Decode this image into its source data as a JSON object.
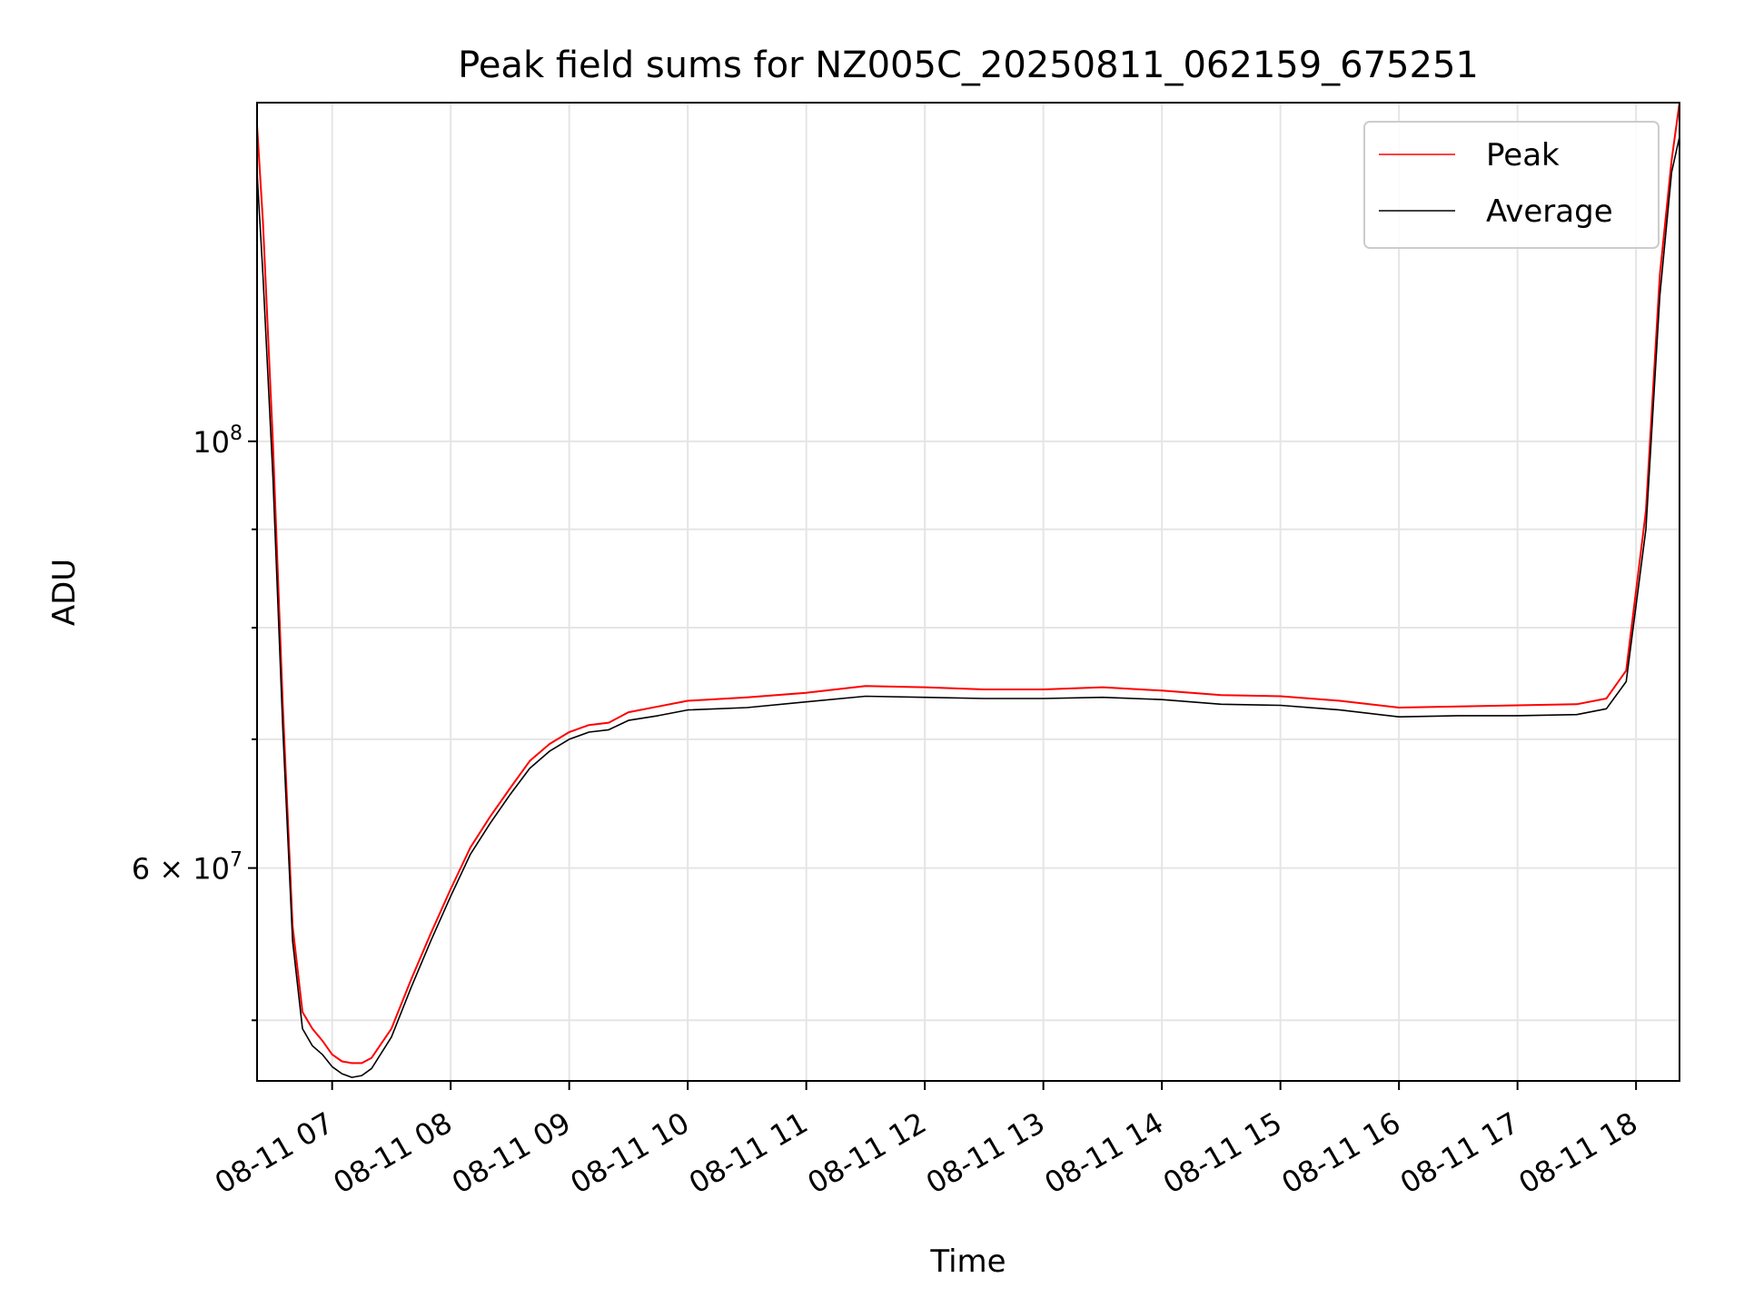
{
  "chart_data": {
    "type": "line",
    "title": "Peak field sums for NZ005C_20250811_062159_675251",
    "xlabel": "Time",
    "ylabel": "ADU",
    "x_axis": {
      "type": "time",
      "range": [
        "2025-08-11 06:22",
        "2025-08-11 18:22"
      ],
      "ticks": [
        {
          "t": "2025-08-11 07:00",
          "label": "08-11 07"
        },
        {
          "t": "2025-08-11 08:00",
          "label": "08-11 08"
        },
        {
          "t": "2025-08-11 09:00",
          "label": "08-11 09"
        },
        {
          "t": "2025-08-11 10:00",
          "label": "08-11 10"
        },
        {
          "t": "2025-08-11 11:00",
          "label": "08-11 11"
        },
        {
          "t": "2025-08-11 12:00",
          "label": "08-11 12"
        },
        {
          "t": "2025-08-11 13:00",
          "label": "08-11 13"
        },
        {
          "t": "2025-08-11 14:00",
          "label": "08-11 14"
        },
        {
          "t": "2025-08-11 15:00",
          "label": "08-11 15"
        },
        {
          "t": "2025-08-11 16:00",
          "label": "08-11 16"
        },
        {
          "t": "2025-08-11 17:00",
          "label": "08-11 17"
        },
        {
          "t": "2025-08-11 18:00",
          "label": "08-11 18"
        }
      ]
    },
    "y_axis": {
      "scale": "log",
      "range": [
        46500000,
        150000000
      ],
      "major_ticks": [
        {
          "v": 60000000,
          "base": "6 × 10",
          "exp": "7"
        },
        {
          "v": 100000000,
          "base": "10",
          "exp": "8"
        }
      ],
      "minor_ticks": [
        50000000,
        70000000,
        80000000,
        90000000
      ]
    },
    "grid": true,
    "legend": {
      "position": "top-right",
      "entries": [
        "Peak",
        "Average"
      ]
    },
    "series": [
      {
        "name": "Peak",
        "color": "#ff0000",
        "points": [
          [
            "2025-08-11 06:22",
            146000000
          ],
          [
            "2025-08-11 06:25",
            130000000
          ],
          [
            "2025-08-11 06:30",
            100000000
          ],
          [
            "2025-08-11 06:35",
            73000000
          ],
          [
            "2025-08-11 06:40",
            56000000
          ],
          [
            "2025-08-11 06:45",
            50500000
          ],
          [
            "2025-08-11 06:50",
            49500000
          ],
          [
            "2025-08-11 06:55",
            48800000
          ],
          [
            "2025-08-11 07:00",
            48000000
          ],
          [
            "2025-08-11 07:05",
            47600000
          ],
          [
            "2025-08-11 07:10",
            47500000
          ],
          [
            "2025-08-11 07:15",
            47500000
          ],
          [
            "2025-08-11 07:20",
            47800000
          ],
          [
            "2025-08-11 07:30",
            49500000
          ],
          [
            "2025-08-11 07:40",
            52500000
          ],
          [
            "2025-08-11 07:50",
            55500000
          ],
          [
            "2025-08-11 08:00",
            58500000
          ],
          [
            "2025-08-11 08:10",
            61500000
          ],
          [
            "2025-08-11 08:20",
            63800000
          ],
          [
            "2025-08-11 08:30",
            66000000
          ],
          [
            "2025-08-11 08:40",
            68200000
          ],
          [
            "2025-08-11 08:50",
            69600000
          ],
          [
            "2025-08-11 09:00",
            70600000
          ],
          [
            "2025-08-11 09:10",
            71200000
          ],
          [
            "2025-08-11 09:20",
            71400000
          ],
          [
            "2025-08-11 09:30",
            72300000
          ],
          [
            "2025-08-11 09:45",
            72800000
          ],
          [
            "2025-08-11 10:00",
            73300000
          ],
          [
            "2025-08-11 10:30",
            73600000
          ],
          [
            "2025-08-11 11:00",
            74000000
          ],
          [
            "2025-08-11 11:30",
            74600000
          ],
          [
            "2025-08-11 12:00",
            74500000
          ],
          [
            "2025-08-11 12:30",
            74300000
          ],
          [
            "2025-08-11 13:00",
            74300000
          ],
          [
            "2025-08-11 13:30",
            74500000
          ],
          [
            "2025-08-11 14:00",
            74200000
          ],
          [
            "2025-08-11 14:30",
            73800000
          ],
          [
            "2025-08-11 15:00",
            73700000
          ],
          [
            "2025-08-11 15:30",
            73300000
          ],
          [
            "2025-08-11 16:00",
            72700000
          ],
          [
            "2025-08-11 16:30",
            72800000
          ],
          [
            "2025-08-11 17:00",
            72900000
          ],
          [
            "2025-08-11 17:30",
            73000000
          ],
          [
            "2025-08-11 17:45",
            73500000
          ],
          [
            "2025-08-11 17:55",
            76000000
          ],
          [
            "2025-08-11 18:05",
            92000000
          ],
          [
            "2025-08-11 18:12",
            122000000
          ],
          [
            "2025-08-11 18:18",
            140000000
          ],
          [
            "2025-08-11 18:22",
            150000000
          ]
        ]
      },
      {
        "name": "Average",
        "color": "#000000",
        "points": [
          [
            "2025-08-11 06:22",
            138000000
          ],
          [
            "2025-08-11 06:25",
            122000000
          ],
          [
            "2025-08-11 06:30",
            96000000
          ],
          [
            "2025-08-11 06:35",
            71000000
          ],
          [
            "2025-08-11 06:40",
            55000000
          ],
          [
            "2025-08-11 06:45",
            49500000
          ],
          [
            "2025-08-11 06:50",
            48500000
          ],
          [
            "2025-08-11 06:55",
            48000000
          ],
          [
            "2025-08-11 07:00",
            47300000
          ],
          [
            "2025-08-11 07:05",
            46900000
          ],
          [
            "2025-08-11 07:10",
            46700000
          ],
          [
            "2025-08-11 07:15",
            46800000
          ],
          [
            "2025-08-11 07:20",
            47200000
          ],
          [
            "2025-08-11 07:30",
            49000000
          ],
          [
            "2025-08-11 07:40",
            52000000
          ],
          [
            "2025-08-11 07:50",
            55000000
          ],
          [
            "2025-08-11 08:00",
            58000000
          ],
          [
            "2025-08-11 08:10",
            61000000
          ],
          [
            "2025-08-11 08:20",
            63300000
          ],
          [
            "2025-08-11 08:30",
            65500000
          ],
          [
            "2025-08-11 08:40",
            67600000
          ],
          [
            "2025-08-11 08:50",
            69000000
          ],
          [
            "2025-08-11 09:00",
            70000000
          ],
          [
            "2025-08-11 09:10",
            70600000
          ],
          [
            "2025-08-11 09:20",
            70800000
          ],
          [
            "2025-08-11 09:30",
            71600000
          ],
          [
            "2025-08-11 09:45",
            72000000
          ],
          [
            "2025-08-11 10:00",
            72500000
          ],
          [
            "2025-08-11 10:30",
            72700000
          ],
          [
            "2025-08-11 11:00",
            73200000
          ],
          [
            "2025-08-11 11:30",
            73700000
          ],
          [
            "2025-08-11 12:00",
            73600000
          ],
          [
            "2025-08-11 12:30",
            73500000
          ],
          [
            "2025-08-11 13:00",
            73500000
          ],
          [
            "2025-08-11 13:30",
            73600000
          ],
          [
            "2025-08-11 14:00",
            73400000
          ],
          [
            "2025-08-11 14:30",
            73000000
          ],
          [
            "2025-08-11 15:00",
            72900000
          ],
          [
            "2025-08-11 15:30",
            72500000
          ],
          [
            "2025-08-11 16:00",
            71900000
          ],
          [
            "2025-08-11 16:30",
            72000000
          ],
          [
            "2025-08-11 17:00",
            72000000
          ],
          [
            "2025-08-11 17:30",
            72100000
          ],
          [
            "2025-08-11 17:45",
            72600000
          ],
          [
            "2025-08-11 17:55",
            75000000
          ],
          [
            "2025-08-11 18:05",
            90000000
          ],
          [
            "2025-08-11 18:12",
            119000000
          ],
          [
            "2025-08-11 18:18",
            138000000
          ],
          [
            "2025-08-11 18:22",
            144000000
          ]
        ]
      }
    ]
  }
}
